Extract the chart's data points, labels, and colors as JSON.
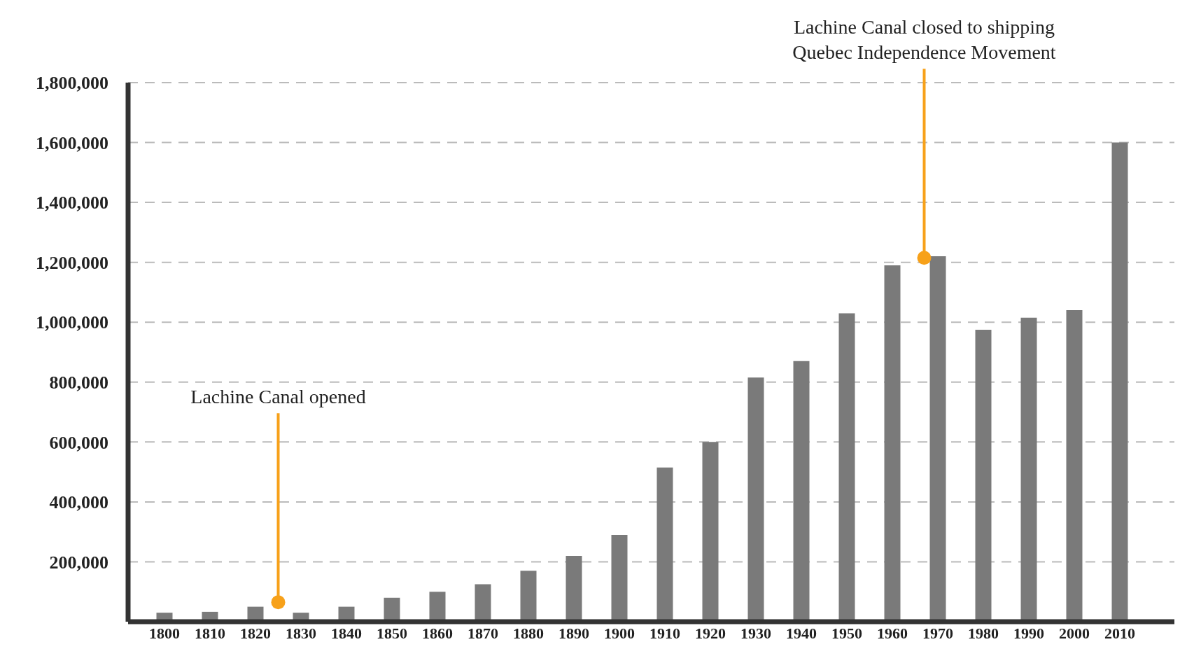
{
  "chart_data": {
    "type": "bar",
    "x": [
      1800,
      1810,
      1820,
      1830,
      1840,
      1850,
      1860,
      1870,
      1880,
      1890,
      1900,
      1910,
      1920,
      1930,
      1940,
      1950,
      1960,
      1970,
      1980,
      1990,
      2000,
      2010
    ],
    "values": [
      30000,
      33000,
      50000,
      30000,
      50000,
      80000,
      100000,
      125000,
      170000,
      220000,
      290000,
      515000,
      600000,
      815000,
      870000,
      1030000,
      1190000,
      1220000,
      975000,
      1015000,
      1040000,
      1600000
    ],
    "color": "#7a7a7a",
    "xlim": [
      1792,
      2022
    ],
    "xticks": [
      1800,
      1810,
      1820,
      1830,
      1840,
      1850,
      1860,
      1870,
      1880,
      1890,
      1900,
      1910,
      1920,
      1930,
      1940,
      1950,
      1960,
      1970,
      1980,
      1990,
      2000,
      2010
    ],
    "ylim": [
      0,
      1800000
    ],
    "yticks": [
      {
        "value": 200000,
        "label": "200,000"
      },
      {
        "value": 400000,
        "label": "400,000"
      },
      {
        "value": 600000,
        "label": "600,000"
      },
      {
        "value": 800000,
        "label": "800,000"
      },
      {
        "value": 1000000,
        "label": "1,000,000"
      },
      {
        "value": 1200000,
        "label": "1,200,000"
      },
      {
        "value": 1400000,
        "label": "1,400,000"
      },
      {
        "value": 1600000,
        "label": "1,600,000"
      },
      {
        "value": 1800000,
        "label": "1,800,000"
      }
    ],
    "grid": "y",
    "annotations": [
      {
        "text": "Lachine Canal opened",
        "x": 1825,
        "y": 65000
      },
      {
        "text": "Lachine Canal closed to shipping\nQuebec Independence Movement",
        "x": 1967,
        "y": 1215000
      }
    ]
  }
}
